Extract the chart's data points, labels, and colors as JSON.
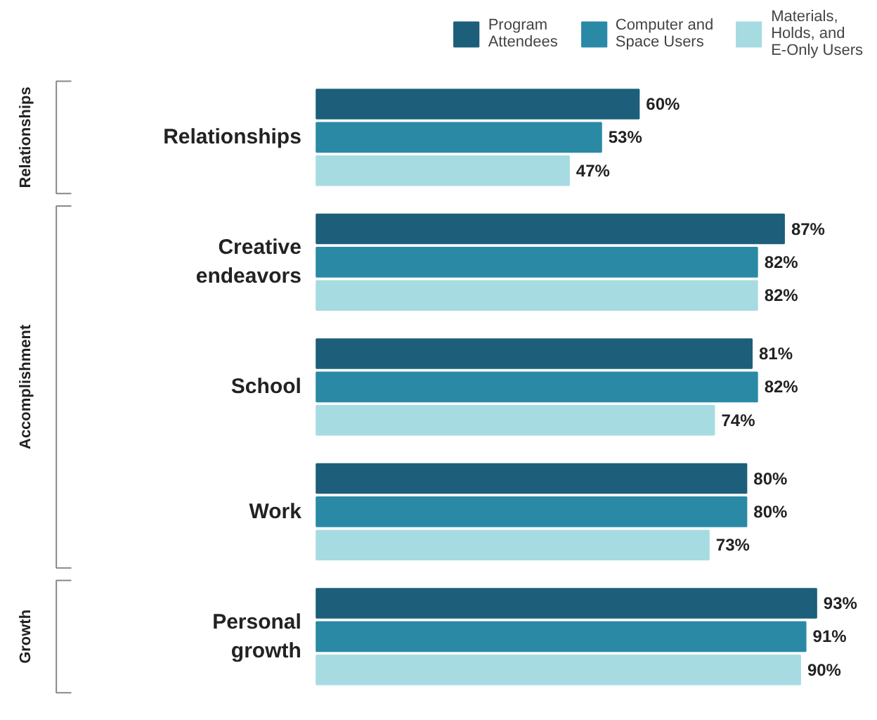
{
  "chart_data": {
    "type": "bar",
    "orientation": "horizontal",
    "categories": [
      "Relationships",
      "Creative endeavors",
      "School",
      "Work",
      "Personal growth"
    ],
    "series": [
      {
        "name": "Program Attendees",
        "color": "#1d5f7a",
        "values": [
          60,
          87,
          81,
          80,
          93
        ],
        "value_labels": [
          "60%",
          "87%",
          "81%",
          "80%",
          "93%"
        ]
      },
      {
        "name": "Computer and Space Users",
        "color": "#2a8aa6",
        "values": [
          53,
          82,
          82,
          80,
          91
        ],
        "value_labels": [
          "53%",
          "82%",
          "82%",
          "80%",
          "91%"
        ]
      },
      {
        "name": "Materials, Holds, and E-Only Users",
        "color": "#a6dbe2",
        "values": [
          47,
          82,
          74,
          73,
          90
        ],
        "value_labels": [
          "47%",
          "82%",
          "74%",
          "73%",
          "90%"
        ]
      }
    ],
    "annotations": [
      "Relationships",
      "Accomplishment",
      "Growth"
    ],
    "legend": "top",
    "grid": false
  }
}
